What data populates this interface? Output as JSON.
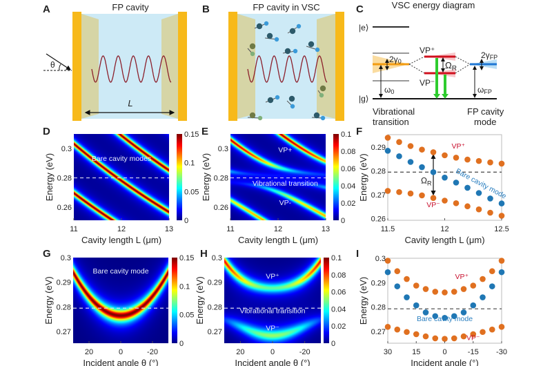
{
  "panels": {
    "A": {
      "letter": "A",
      "title": "FP cavity",
      "theta": "θ",
      "length": "L"
    },
    "B": {
      "letter": "B",
      "title": "FP cavity  in VSC"
    },
    "C": {
      "letter": "C",
      "title": "VSC energy diagram",
      "excited": "|e⟩",
      "ground": "|g⟩",
      "gamma0_main": "2γ",
      "gamma0_sub": "0",
      "omega0_main": "ω",
      "omega0_sub": "0",
      "vp_plus": "VP⁺",
      "vp_minus": "VP⁻",
      "rabi_main": "Ω",
      "rabi_sub": "R",
      "gammafp_main": "2γ",
      "gammafp_sub": "FP",
      "omegafp_main": "ω",
      "omegafp_sub": "FP",
      "left_caption_1": "Vibrational",
      "left_caption_2": "transition",
      "right_caption_1": "FP cavity",
      "right_caption_2": "mode"
    },
    "D": {
      "letter": "D"
    },
    "E": {
      "letter": "E"
    },
    "F": {
      "letter": "F"
    },
    "G": {
      "letter": "G"
    },
    "H": {
      "letter": "H"
    },
    "I": {
      "letter": "I"
    }
  },
  "colors": {
    "mirror": "#f7b91a",
    "cavity": "#cdeaf6",
    "taper": "#d6d5a6",
    "wave": "#8b1e2a",
    "vp_points": "#e07020",
    "cavity_points": "#1f77b4",
    "label_red": "#c8102e",
    "label_blue": "#2a7fc0",
    "green_arrow": "#2ecc2e"
  },
  "chart_data": [
    {
      "id": "D",
      "type": "heatmap",
      "xlabel": "Cavity length L (μm)",
      "ylabel": "Energy (eV)",
      "xlim": [
        11,
        13
      ],
      "ylim": [
        0.251,
        0.31
      ],
      "xticks": [
        11,
        12,
        13
      ],
      "xtick_labels": [
        "11",
        "12",
        "13"
      ],
      "yticks": [
        0.26,
        0.28,
        0.3
      ],
      "ytick_labels": [
        "0.26",
        "0.28",
        "0.3"
      ],
      "colormap": "jet",
      "clim": [
        0,
        0.15
      ],
      "cticks": [
        0,
        0.05,
        0.1,
        0.15
      ],
      "ctick_labels": [
        "0",
        "0.05",
        "0.1",
        "0.15"
      ],
      "dashed_line_y": 0.28,
      "annotations": [
        "Bare cavity modes"
      ]
    },
    {
      "id": "E",
      "type": "heatmap",
      "xlabel": "Cavity length L (μm)",
      "ylabel": "Energy (eV)",
      "xlim": [
        11,
        13
      ],
      "ylim": [
        0.251,
        0.31
      ],
      "xticks": [
        11,
        12,
        13
      ],
      "xtick_labels": [
        "11",
        "12",
        "13"
      ],
      "yticks": [
        0.26,
        0.28,
        0.3
      ],
      "ytick_labels": [
        "0.26",
        "0.28",
        "0.3"
      ],
      "colormap": "jet",
      "clim": [
        0,
        0.1
      ],
      "cticks": [
        0,
        0.02,
        0.04,
        0.06,
        0.08,
        0.1
      ],
      "ctick_labels": [
        "0",
        "0.02",
        "0.04",
        "0.06",
        "0.08",
        "0.1"
      ],
      "dashed_line_y": 0.28,
      "annotations": [
        "VP+",
        "Vibrational transition",
        "VP-"
      ]
    },
    {
      "id": "F",
      "type": "scatter",
      "xlabel": "Cavity length L (μm)",
      "ylabel": "Energy (eV)",
      "xlim": [
        11.5,
        12.5
      ],
      "ylim": [
        0.2592,
        0.2953
      ],
      "xticks": [
        11.5,
        12,
        12.5
      ],
      "xtick_labels": [
        "11.5",
        "12",
        "12.5"
      ],
      "yticks": [
        0.26,
        0.27,
        0.28,
        0.29
      ],
      "ytick_labels": [
        "0.26",
        "0.27",
        "0.28",
        "0.29"
      ],
      "x": [
        11.5,
        11.6,
        11.7,
        11.8,
        11.9,
        12.0,
        12.1,
        12.2,
        12.3,
        12.4,
        12.5
      ],
      "series": [
        {
          "name": "VP⁺",
          "color": "#e07020",
          "values": [
            0.294,
            0.2922,
            0.2905,
            0.289,
            0.2879,
            0.2866,
            0.2856,
            0.2848,
            0.2842,
            0.2836,
            0.2831
          ]
        },
        {
          "name": "Bare cavity mode",
          "color": "#1f77b4",
          "values": [
            0.2885,
            0.2862,
            0.2838,
            0.2816,
            0.2795,
            0.2772,
            0.2751,
            0.2729,
            0.2707,
            0.2684,
            0.2663
          ]
        },
        {
          "name": "VP⁻",
          "color": "#e07020",
          "values": [
            0.2716,
            0.2711,
            0.2705,
            0.2697,
            0.2686,
            0.2675,
            0.2664,
            0.2651,
            0.2638,
            0.2624,
            0.2611
          ]
        }
      ],
      "dashed_line_y": 0.2795,
      "rabi_label": "Ω",
      "rabi_sub": "R",
      "rabi_at_x": 11.9
    },
    {
      "id": "G",
      "type": "heatmap",
      "xlabel": "Incident angle θ (°)",
      "ylabel": "Energy (eV)",
      "xlim": [
        30,
        -30
      ],
      "ylim": [
        0.2653,
        0.3
      ],
      "xticks": [
        20,
        0,
        -20
      ],
      "xtick_labels": [
        "20",
        "0",
        "-20"
      ],
      "yticks": [
        0.27,
        0.28,
        0.29,
        0.3
      ],
      "ytick_labels": [
        "0.27",
        "0.28",
        "0.29",
        "0.3"
      ],
      "colormap": "jet",
      "clim": [
        0,
        0.15
      ],
      "cticks": [
        0,
        0.05,
        0.1,
        0.15
      ],
      "ctick_labels": [
        "0",
        "0.05",
        "0.1",
        "0.15"
      ],
      "dashed_line_y": 0.2795,
      "annotations": [
        "Bare cavity mode"
      ]
    },
    {
      "id": "H",
      "type": "heatmap",
      "xlabel": "Incident angle θ (°)",
      "ylabel": "Energy (eV)",
      "xlim": [
        30,
        -30
      ],
      "ylim": [
        0.2653,
        0.3
      ],
      "xticks": [
        20,
        0,
        -20
      ],
      "xtick_labels": [
        "20",
        "0",
        "-20"
      ],
      "yticks": [
        0.27,
        0.28,
        0.29,
        0.3
      ],
      "ytick_labels": [
        "0.27",
        "0.28",
        "0.29",
        "0.3"
      ],
      "colormap": "jet",
      "clim": [
        0,
        0.1
      ],
      "cticks": [
        0,
        0.02,
        0.04,
        0.06,
        0.08,
        0.1
      ],
      "ctick_labels": [
        "0",
        "0.02",
        "0.04",
        "0.06",
        "0.08",
        "0.1"
      ],
      "dashed_line_y": 0.2795,
      "annotations": [
        "VP⁺",
        "Vibrational transition",
        "VP⁻"
      ]
    },
    {
      "id": "I",
      "type": "scatter",
      "xlabel": "Incident angle (°)",
      "ylabel": "Energy (eV)",
      "xlim": [
        30,
        -30
      ],
      "ylim": [
        0.2652,
        0.3
      ],
      "xticks": [
        30,
        15,
        0,
        -15,
        -30
      ],
      "xtick_labels": [
        "30",
        "15",
        "0",
        "-15",
        "-30"
      ],
      "yticks": [
        0.27,
        0.28,
        0.29,
        0.3
      ],
      "ytick_labels": [
        "0.27",
        "0.28",
        "0.29",
        "0.3"
      ],
      "x": [
        30,
        25,
        20,
        15,
        10,
        5,
        0,
        -5,
        -10,
        -15,
        -20,
        -25,
        -30
      ],
      "series": [
        {
          "name": "VP⁺",
          "color": "#e07020",
          "values": [
            0.299,
            0.2947,
            0.2915,
            0.2888,
            0.2874,
            0.2863,
            0.286,
            0.2863,
            0.2874,
            0.2888,
            0.2915,
            0.2947,
            0.299
          ]
        },
        {
          "name": "Bare cavity mode",
          "color": "#1f77b4",
          "values": [
            0.2943,
            0.2885,
            0.284,
            0.2807,
            0.2778,
            0.2763,
            0.2756,
            0.2763,
            0.2778,
            0.2807,
            0.284,
            0.2885,
            0.2943
          ]
        },
        {
          "name": "VP⁻",
          "color": "#e07020",
          "values": [
            0.2719,
            0.2708,
            0.2698,
            0.2689,
            0.268,
            0.2672,
            0.267,
            0.2672,
            0.268,
            0.2689,
            0.2698,
            0.2708,
            0.2719
          ]
        }
      ],
      "dashed_line_y": 0.2793
    }
  ]
}
